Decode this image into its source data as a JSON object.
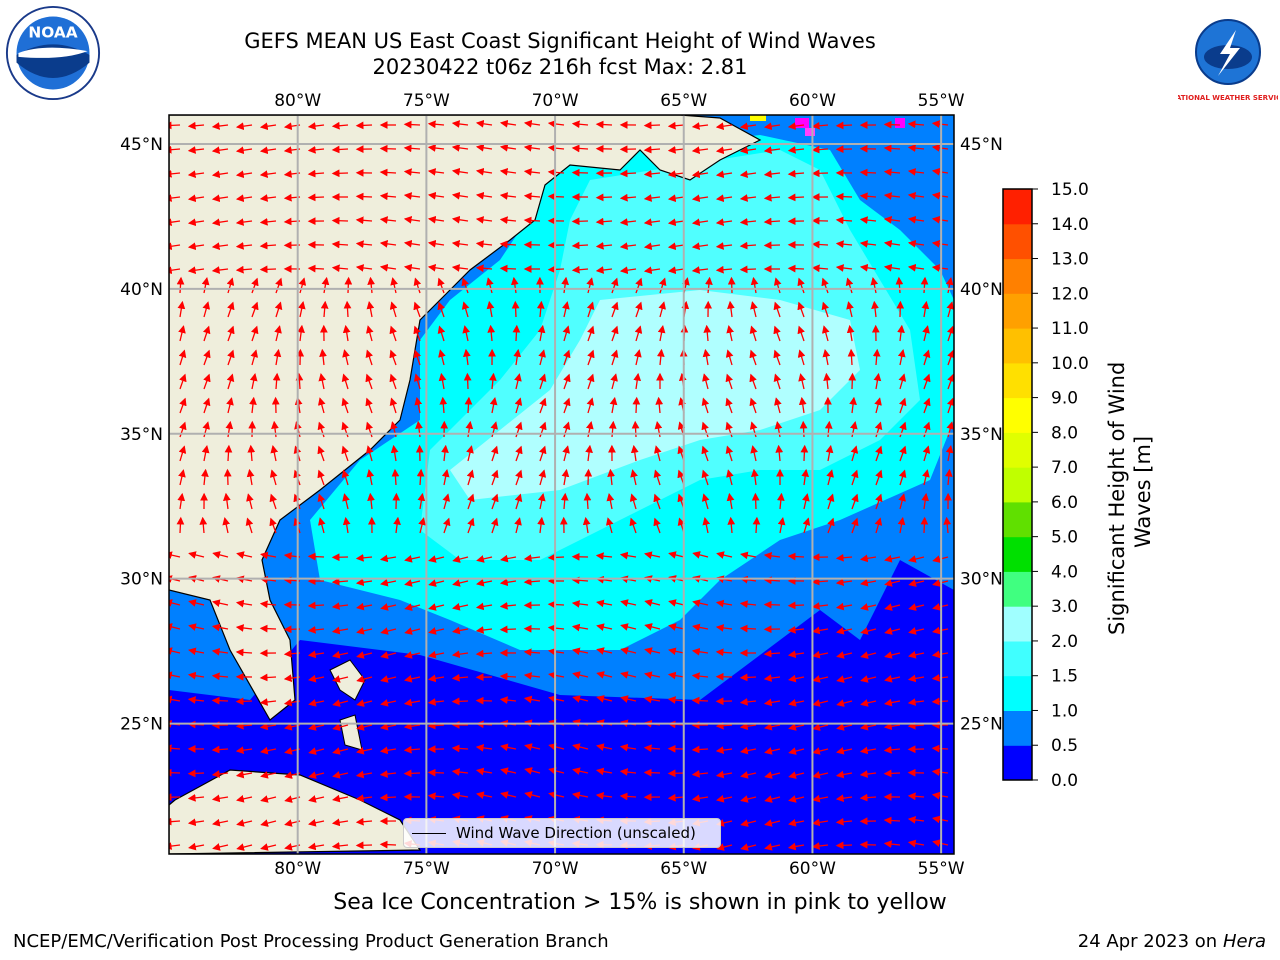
{
  "title": {
    "line1": "GEFS MEAN US East Coast Significant Height of Wind Waves",
    "line2": "20230422 t06z 216h fcst   Max: 2.81"
  },
  "axes": {
    "lon_labels": [
      "80°W",
      "75°W",
      "70°W",
      "65°W",
      "60°W",
      "55°W"
    ],
    "lat_labels": [
      "45°N",
      "40°N",
      "35°N",
      "30°N",
      "25°N"
    ],
    "lon_values": [
      -80,
      -75,
      -70,
      -65,
      -60,
      -55
    ],
    "lat_values": [
      45,
      40,
      35,
      30,
      25
    ],
    "lon_range": [
      -85,
      -54.5
    ],
    "lat_range": [
      20.5,
      46
    ]
  },
  "colorbar": {
    "label": "Significant Height of Wind Waves [m]",
    "label_line1": "Significant Height of Wind",
    "label_line2": "Waves [m]",
    "ticks": [
      "0.0",
      "0.5",
      "1.0",
      "1.5",
      "2.0",
      "3.0",
      "4.0",
      "5.0",
      "6.0",
      "7.0",
      "8.0",
      "9.0",
      "10.0",
      "11.0",
      "12.0",
      "13.0",
      "14.0",
      "15.0"
    ],
    "colors": [
      "#0000ff",
      "#0080ff",
      "#00ffff",
      "#40ffff",
      "#a0ffff",
      "#40ff80",
      "#00e000",
      "#60e000",
      "#c0ff00",
      "#e0ff00",
      "#ffff00",
      "#ffe000",
      "#ffc000",
      "#ffa000",
      "#ff8000",
      "#ff5000",
      "#ff2000"
    ]
  },
  "legend": {
    "label": "Wind Wave Direction (unscaled)"
  },
  "ice_note": "Sea Ice Concentration > 15% is shown in pink to yellow",
  "footer": {
    "left": "NCEP/EMC/Verification Post Processing Product Generation Branch",
    "right_date": "24 Apr 2023 on ",
    "right_machine": "Hera"
  },
  "logos": {
    "left": "NOAA",
    "right": "NATIONAL WEATHER SERVICE"
  },
  "colors": {
    "land": "#efeedc",
    "arrow": "#ff0000",
    "grid": "#b0b0b0"
  }
}
